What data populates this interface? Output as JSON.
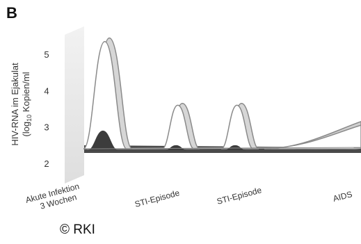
{
  "panel_label": "B",
  "credit": "© RKI",
  "chart_data": {
    "type": "area",
    "ylabel_line1": "HIV-RNA im Ejakulat",
    "ylabel_line2": "(log",
    "ylabel_sub": "10",
    "ylabel_tail": " Kopien/ml",
    "yticks": [
      2,
      3,
      4,
      5
    ],
    "ylim": [
      2,
      5.6
    ],
    "categories": [
      "Akute Infektion",
      "STI-Episode",
      "STI-Episode",
      "AIDS"
    ],
    "category_sublines": [
      "3 Wochen",
      "",
      "",
      ""
    ],
    "series": [
      {
        "values": [
          5.45,
          3.65,
          3.65,
          3.15
        ]
      },
      {
        "values": [
          5.35,
          3.6,
          3.6,
          3.05
        ]
      },
      {
        "values": [
          2.9,
          2.5,
          2.5,
          2.4
        ]
      }
    ],
    "baseline": 2.4,
    "colors": {
      "back_wall": "#e8e8e8",
      "floor": "#4a4a4a",
      "envelope": "#d6d6d6",
      "line": "#8a8a8a",
      "dark": "#3c3c3c",
      "shade": "#cfcfcf"
    },
    "grid": false
  }
}
